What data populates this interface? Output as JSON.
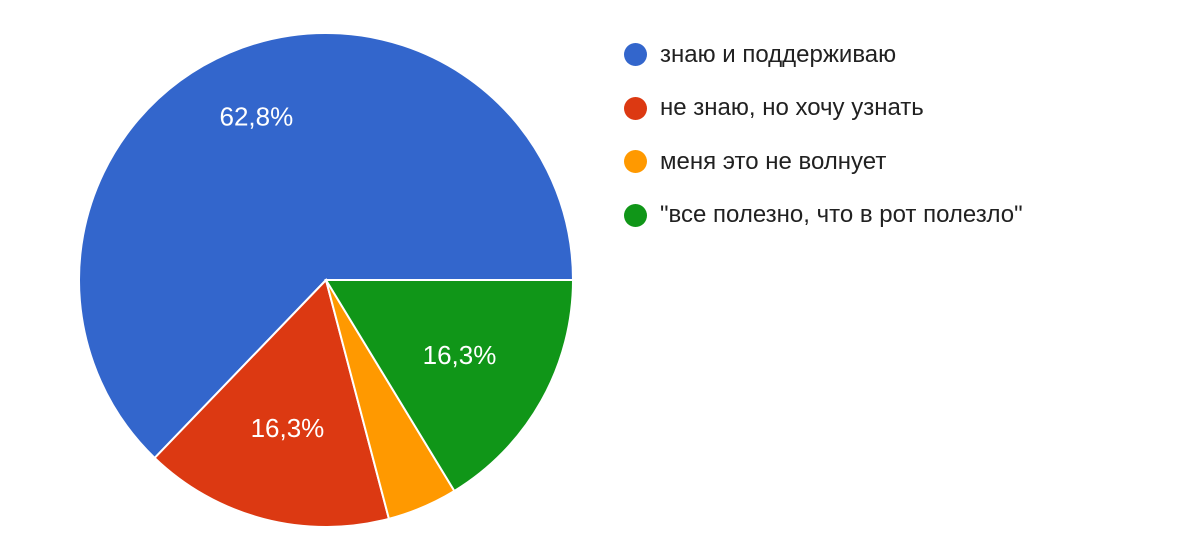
{
  "chart_data": {
    "type": "pie",
    "categories": [
      "знаю и поддерживаю",
      "не знаю, но хочу узнать",
      "меня это не волнует",
      "\"все полезно, что в рот полезло\""
    ],
    "values": [
      62.8,
      16.3,
      4.6,
      16.3
    ],
    "data_labels": [
      "62,8%",
      "16,3%",
      "",
      "16,3%"
    ],
    "colors": [
      "#3366cc",
      "#dc3912",
      "#ff9900",
      "#109618"
    ],
    "legend_position": "right",
    "start": "3 o'clock, clockwise"
  }
}
